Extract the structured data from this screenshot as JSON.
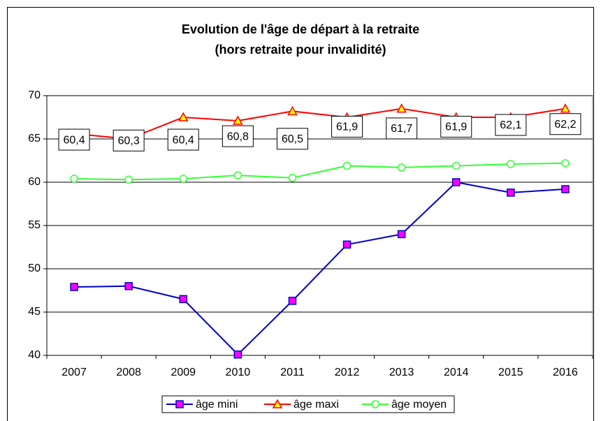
{
  "chart_data": {
    "type": "line",
    "title": "Evolution de l'âge de départ à la retraite",
    "subtitle": "(hors retraite pour invalidité)",
    "categories": [
      "2007",
      "2008",
      "2009",
      "2010",
      "2011",
      "2012",
      "2013",
      "2014",
      "2015",
      "2016"
    ],
    "series": [
      {
        "name": "âge mini",
        "color": "#0000cc",
        "marker": "square",
        "marker_color": "#ff00ff",
        "values": [
          47.9,
          48.0,
          46.5,
          40.1,
          46.3,
          52.8,
          54.0,
          60.0,
          58.8,
          59.2
        ]
      },
      {
        "name": "âge maxi",
        "color": "#ff0000",
        "marker": "triangle",
        "marker_color": "#ffff00",
        "values": [
          65.6,
          65.0,
          67.5,
          67.1,
          68.2,
          67.5,
          68.5,
          67.5,
          67.5,
          68.5
        ]
      },
      {
        "name": "âge moyen",
        "color": "#33ff33",
        "marker": "circle",
        "marker_color": "#ffffff",
        "values": [
          60.4,
          60.3,
          60.4,
          60.8,
          60.5,
          61.9,
          61.7,
          61.9,
          62.1,
          62.2
        ],
        "value_labels": [
          "60,4",
          "60,3",
          "60,4",
          "60,8",
          "60,5",
          "61,9",
          "61,7",
          "61,9",
          "62,1",
          "62,2"
        ]
      }
    ],
    "ylim": [
      40,
      70
    ],
    "yticks": [
      40,
      45,
      50,
      55,
      60,
      65,
      70
    ],
    "grid": true,
    "legend": "bottom"
  }
}
